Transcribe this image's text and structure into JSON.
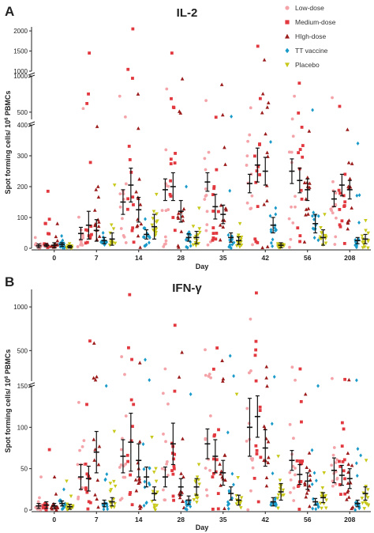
{
  "legend": {
    "placement": "top-right",
    "items": [
      {
        "label": "Low-dose",
        "color": "#f4a3a8",
        "marker": "circle"
      },
      {
        "label": "Medium-dose",
        "color": "#e2383f",
        "marker": "square"
      },
      {
        "label": "HIgh-dose",
        "color": "#9b1c1c",
        "marker": "triangle-up"
      },
      {
        "label": "TT vaccine",
        "color": "#1a9ac9",
        "marker": "diamond"
      },
      {
        "label": "Placebo",
        "color": "#c8c81a",
        "marker": "triangle-down"
      }
    ]
  },
  "chart_data": [
    {
      "panel_letter": "A",
      "title": "IL-2",
      "type": "scatter",
      "xlabel": "Day",
      "ylabel": "Spot forming cells/ 10",
      "ylabel_sup": "6",
      "ylabel_tail": " PBMCs",
      "categories": [
        "0",
        "7",
        "14",
        "28",
        "35",
        "42",
        "56",
        "208"
      ],
      "y_axis_segments": [
        {
          "range": [
            0,
            400
          ],
          "ticks": [
            "0",
            "100",
            "200",
            "300",
            "400"
          ]
        },
        {
          "range": [
            400,
            1000
          ],
          "ticks": [
            "500",
            "1000"
          ]
        },
        {
          "range": [
            1000,
            2100
          ],
          "ticks": [
            "1000",
            "1500",
            "2000"
          ]
        }
      ],
      "series": [
        {
          "name": "Low-dose",
          "mean": [
            8,
            48,
            150,
            190,
            215,
            210,
            250,
            160
          ],
          "sem": [
            6,
            20,
            40,
            35,
            30,
            30,
            40,
            25
          ],
          "max": [
            35,
            550,
            720,
            820,
            660,
            560,
            720,
            700
          ]
        },
        {
          "name": "Medium-dose",
          "mean": [
            10,
            75,
            205,
            200,
            135,
            270,
            220,
            205
          ],
          "sem": [
            5,
            45,
            55,
            45,
            40,
            55,
            40,
            35
          ],
          "max": [
            185,
            1450,
            2050,
            1450,
            430,
            1620,
            900,
            580
          ]
        },
        {
          "name": "HIgh-dose",
          "mean": [
            10,
            58,
            125,
            120,
            110,
            250,
            190,
            190
          ],
          "sem": [
            8,
            35,
            40,
            35,
            30,
            45,
            35,
            30
          ],
          "max": [
            80,
            395,
            750,
            960,
            880,
            1280,
            380,
            385
          ]
        },
        {
          "name": "TT vaccine",
          "mean": [
            12,
            25,
            45,
            35,
            35,
            75,
            80,
            25
          ],
          "sem": [
            6,
            10,
            15,
            12,
            15,
            25,
            30,
            10
          ],
          "max": [
            40,
            50,
            95,
            200,
            440,
            345,
            530,
            340
          ]
        },
        {
          "name": "Placebo",
          "mean": [
            5,
            30,
            70,
            35,
            25,
            10,
            35,
            30
          ],
          "sem": [
            4,
            20,
            40,
            20,
            12,
            8,
            25,
            15
          ],
          "max": [
            15,
            205,
            175,
            130,
            80,
            15,
            110,
            90
          ]
        }
      ]
    },
    {
      "panel_letter": "B",
      "title": "IFN-γ",
      "type": "scatter",
      "xlabel": "Day",
      "ylabel": "Spot forming cells/ 10",
      "ylabel_sup": "6",
      "ylabel_tail": " PBMCs",
      "categories": [
        "0",
        "7",
        "14",
        "28",
        "35",
        "42",
        "56",
        "208"
      ],
      "y_axis_segments": [
        {
          "range": [
            0,
            150
          ],
          "ticks": [
            "0",
            "50",
            "100",
            "150"
          ]
        },
        {
          "range": [
            150,
            1200
          ],
          "ticks": [
            "500",
            "1000"
          ]
        }
      ],
      "series": [
        {
          "name": "Low-dose",
          "mean": [
            5,
            40,
            65,
            40,
            80,
            100,
            60,
            48
          ],
          "sem": [
            3,
            15,
            20,
            12,
            18,
            35,
            12,
            15
          ],
          "max": [
            40,
            130,
            430,
            290,
            510,
            860,
            310,
            180
          ]
        },
        {
          "name": "Medium-dose",
          "mean": [
            6,
            38,
            82,
            80,
            65,
            113,
            43,
            42
          ],
          "sem": [
            4,
            15,
            35,
            25,
            20,
            25,
            12,
            12
          ],
          "max": [
            73,
            610,
            1140,
            790,
            530,
            1160,
            290,
            170
          ]
        },
        {
          "name": "HIgh-dose",
          "mean": [
            5,
            70,
            60,
            28,
            45,
            75,
            35,
            38
          ],
          "sem": [
            3,
            25,
            20,
            10,
            15,
            22,
            10,
            12
          ],
          "max": [
            40,
            585,
            360,
            480,
            385,
            315,
            140,
            165
          ]
        },
        {
          "name": "TT vaccine",
          "mean": [
            8,
            8,
            40,
            12,
            20,
            10,
            10,
            8
          ],
          "sem": [
            3,
            4,
            12,
            5,
            8,
            5,
            4,
            4
          ],
          "max": [
            25,
            150,
            395,
            140,
            440,
            200,
            150,
            160
          ]
        },
        {
          "name": "Placebo",
          "mean": [
            4,
            10,
            20,
            28,
            12,
            22,
            15,
            20
          ],
          "sem": [
            3,
            5,
            8,
            10,
            6,
            10,
            6,
            8
          ],
          "max": [
            35,
            95,
            88,
            55,
            140,
            65,
            45,
            60
          ]
        }
      ]
    }
  ]
}
